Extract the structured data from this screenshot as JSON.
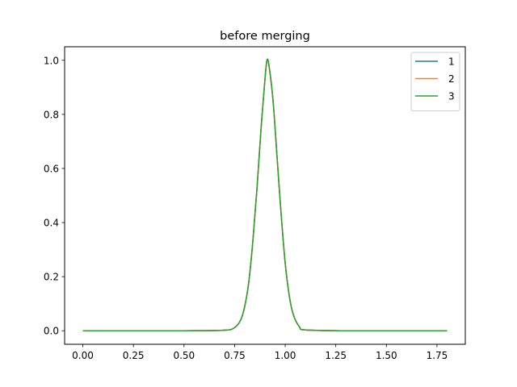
{
  "chart_data": {
    "type": "line",
    "title": "before merging",
    "xlabel": "",
    "ylabel": "",
    "xlim": [
      -0.09,
      1.89
    ],
    "ylim": [
      -0.05,
      1.05
    ],
    "xticks": [
      "0.00",
      "0.25",
      "0.50",
      "0.75",
      "1.00",
      "1.25",
      "1.50",
      "1.75"
    ],
    "yticks": [
      "0.0",
      "0.2",
      "0.4",
      "0.6",
      "0.8",
      "1.0"
    ],
    "legend_position": "top-right",
    "grid": false,
    "x": [
      0.0,
      0.5,
      0.7,
      0.75,
      0.78,
      0.8,
      0.82,
      0.84,
      0.86,
      0.88,
      0.9,
      0.91,
      0.92,
      0.94,
      0.96,
      0.98,
      1.0,
      1.02,
      1.04,
      1.07,
      1.1,
      1.3,
      1.8
    ],
    "series": [
      {
        "name": "1",
        "color": "#1f77b4",
        "values": [
          0.0,
          0.0,
          0.002,
          0.012,
          0.04,
          0.09,
          0.18,
          0.33,
          0.52,
          0.74,
          0.93,
          1.0,
          0.98,
          0.85,
          0.64,
          0.43,
          0.25,
          0.13,
          0.06,
          0.015,
          0.003,
          0.0,
          0.0
        ]
      },
      {
        "name": "2",
        "color": "#ff7f0e",
        "values": [
          0.0,
          0.0,
          0.002,
          0.012,
          0.04,
          0.09,
          0.18,
          0.33,
          0.52,
          0.74,
          0.93,
          1.0,
          0.98,
          0.85,
          0.64,
          0.43,
          0.25,
          0.13,
          0.06,
          0.015,
          0.003,
          0.0,
          0.0
        ]
      },
      {
        "name": "3",
        "color": "#2ca02c",
        "values": [
          0.0,
          0.0,
          0.002,
          0.012,
          0.04,
          0.09,
          0.18,
          0.33,
          0.52,
          0.74,
          0.93,
          1.0,
          0.98,
          0.85,
          0.64,
          0.43,
          0.25,
          0.13,
          0.06,
          0.015,
          0.003,
          0.0,
          0.0
        ]
      }
    ]
  }
}
